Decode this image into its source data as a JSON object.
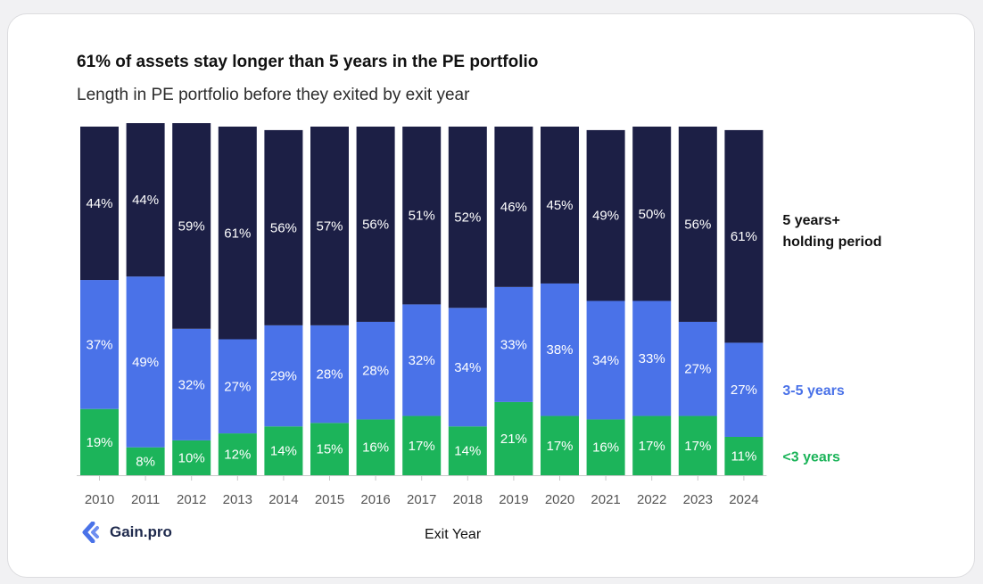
{
  "chart_data": {
    "type": "bar",
    "stacked": true,
    "title": "61% of assets stay longer than 5 years in the PE portfolio",
    "subtitle": "Length in PE portfolio before they exited by exit year",
    "xlabel": "Exit Year",
    "ylabel": "",
    "ylim": [
      0,
      100
    ],
    "grid": false,
    "legend_position": "right",
    "categories": [
      "2010",
      "2011",
      "2012",
      "2013",
      "2014",
      "2015",
      "2016",
      "2017",
      "2018",
      "2019",
      "2020",
      "2021",
      "2022",
      "2023",
      "2024"
    ],
    "series": [
      {
        "name": "<3 years",
        "color": "#1cb45a",
        "values": [
          19,
          8,
          10,
          12,
          14,
          15,
          16,
          17,
          14,
          21,
          17,
          16,
          17,
          17,
          11
        ]
      },
      {
        "name": "3-5 years",
        "color": "#4a72e8",
        "values": [
          37,
          49,
          32,
          27,
          29,
          28,
          28,
          32,
          34,
          33,
          38,
          34,
          33,
          27,
          27
        ]
      },
      {
        "name": "5 years+ holding period",
        "color": "#1c1f45",
        "values": [
          44,
          44,
          59,
          61,
          56,
          57,
          56,
          51,
          52,
          46,
          45,
          49,
          50,
          56,
          61
        ]
      }
    ],
    "legend": [
      {
        "lines": [
          "5 years+",
          "holding period"
        ],
        "color": "#111111"
      },
      {
        "lines": [
          "3-5 years"
        ],
        "color": "#4a72e8"
      },
      {
        "lines": [
          "<3 years"
        ],
        "color": "#1cb45a"
      }
    ]
  },
  "brand": {
    "name": "Gain.pro",
    "logo_icon": "gain-pro-logo-icon",
    "accent": "#4a72e8"
  }
}
